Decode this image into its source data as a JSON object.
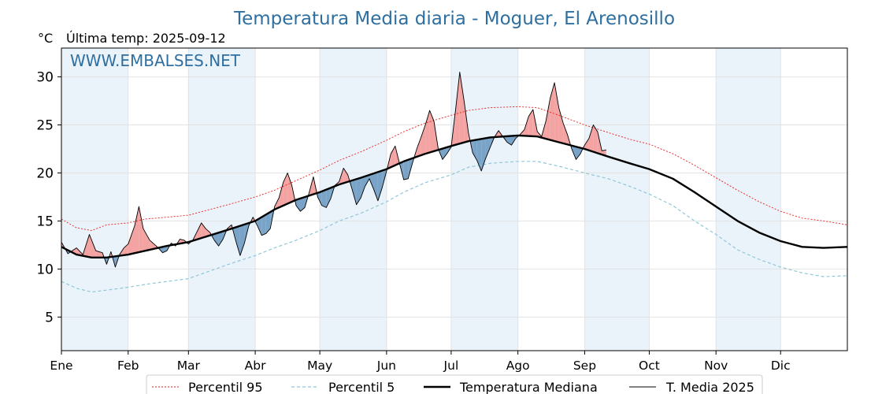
{
  "chart_data": {
    "type": "line",
    "title": "Temperatura Media diaria - Moguer, El Arenosillo",
    "ylabel": "°C",
    "subtitle": "Última temp: 2025-09-12",
    "watermark": "WWW.EMBALSES.NET",
    "x_unit": "day-of-year",
    "xlim": [
      1,
      366
    ],
    "ylim": [
      1.5,
      33
    ],
    "yticks": [
      5,
      10,
      15,
      20,
      25,
      30
    ],
    "month_labels": [
      "Ene",
      "Feb",
      "Mar",
      "Abr",
      "May",
      "Jun",
      "Jul",
      "Ago",
      "Sep",
      "Oct",
      "Nov",
      "Dic"
    ],
    "month_starts": [
      1,
      32,
      60,
      91,
      121,
      152,
      182,
      213,
      244,
      274,
      305,
      335
    ],
    "grid": true,
    "shaded_months": true,
    "legend_position": "bottom-center",
    "colors": {
      "p95": "#e8211c",
      "p5": "#8ec8d8",
      "median": "#000000",
      "current": "#000000",
      "above_fill": "#f4a3a3",
      "below_fill": "#7aa3c8",
      "band": "#eaf2fa",
      "title": "#2e6fa0"
    },
    "series": [
      {
        "key": "p95",
        "name": "Percentil 95",
        "style": "dotted",
        "points": [
          [
            1,
            15.2
          ],
          [
            8,
            14.3
          ],
          [
            15,
            14.0
          ],
          [
            22,
            14.6
          ],
          [
            32,
            14.8
          ],
          [
            40,
            15.2
          ],
          [
            50,
            15.4
          ],
          [
            60,
            15.6
          ],
          [
            70,
            16.2
          ],
          [
            80,
            16.8
          ],
          [
            91,
            17.5
          ],
          [
            100,
            18.2
          ],
          [
            110,
            19.2
          ],
          [
            121,
            20.3
          ],
          [
            130,
            21.3
          ],
          [
            140,
            22.2
          ],
          [
            152,
            23.4
          ],
          [
            160,
            24.3
          ],
          [
            170,
            25.2
          ],
          [
            182,
            26.0
          ],
          [
            190,
            26.5
          ],
          [
            200,
            26.8
          ],
          [
            213,
            26.9
          ],
          [
            222,
            26.8
          ],
          [
            232,
            26.0
          ],
          [
            244,
            25.0
          ],
          [
            255,
            24.2
          ],
          [
            265,
            23.5
          ],
          [
            274,
            23.0
          ],
          [
            285,
            22.0
          ],
          [
            295,
            20.8
          ],
          [
            305,
            19.5
          ],
          [
            315,
            18.2
          ],
          [
            325,
            17.0
          ],
          [
            335,
            16.0
          ],
          [
            345,
            15.3
          ],
          [
            355,
            15.0
          ],
          [
            366,
            14.6
          ]
        ]
      },
      {
        "key": "p5",
        "name": "Percentil 5",
        "style": "dashed",
        "points": [
          [
            1,
            8.7
          ],
          [
            8,
            8.0
          ],
          [
            15,
            7.6
          ],
          [
            22,
            7.8
          ],
          [
            32,
            8.1
          ],
          [
            40,
            8.4
          ],
          [
            50,
            8.7
          ],
          [
            60,
            9.0
          ],
          [
            70,
            9.8
          ],
          [
            80,
            10.6
          ],
          [
            91,
            11.4
          ],
          [
            100,
            12.2
          ],
          [
            110,
            13.0
          ],
          [
            121,
            14.0
          ],
          [
            130,
            15.0
          ],
          [
            140,
            15.8
          ],
          [
            152,
            17.0
          ],
          [
            160,
            18.0
          ],
          [
            170,
            19.0
          ],
          [
            182,
            19.8
          ],
          [
            190,
            20.6
          ],
          [
            200,
            21.0
          ],
          [
            213,
            21.2
          ],
          [
            222,
            21.2
          ],
          [
            232,
            20.7
          ],
          [
            244,
            20.0
          ],
          [
            255,
            19.4
          ],
          [
            265,
            18.6
          ],
          [
            274,
            17.8
          ],
          [
            285,
            16.6
          ],
          [
            295,
            15.0
          ],
          [
            305,
            13.6
          ],
          [
            315,
            12.0
          ],
          [
            325,
            11.0
          ],
          [
            335,
            10.2
          ],
          [
            345,
            9.6
          ],
          [
            355,
            9.2
          ],
          [
            366,
            9.3
          ]
        ]
      },
      {
        "key": "median",
        "name": "Temperatura Mediana",
        "style": "solid-thick",
        "points": [
          [
            1,
            12.3
          ],
          [
            8,
            11.5
          ],
          [
            15,
            11.2
          ],
          [
            22,
            11.2
          ],
          [
            32,
            11.5
          ],
          [
            40,
            11.9
          ],
          [
            50,
            12.4
          ],
          [
            60,
            12.8
          ],
          [
            70,
            13.5
          ],
          [
            80,
            14.2
          ],
          [
            91,
            15.0
          ],
          [
            100,
            16.2
          ],
          [
            110,
            17.2
          ],
          [
            121,
            18.0
          ],
          [
            130,
            18.8
          ],
          [
            140,
            19.5
          ],
          [
            152,
            20.4
          ],
          [
            160,
            21.2
          ],
          [
            170,
            22.0
          ],
          [
            182,
            22.8
          ],
          [
            190,
            23.3
          ],
          [
            200,
            23.7
          ],
          [
            213,
            23.9
          ],
          [
            222,
            23.8
          ],
          [
            232,
            23.2
          ],
          [
            244,
            22.5
          ],
          [
            255,
            21.7
          ],
          [
            265,
            21.0
          ],
          [
            274,
            20.4
          ],
          [
            285,
            19.4
          ],
          [
            295,
            18.0
          ],
          [
            305,
            16.5
          ],
          [
            315,
            15.0
          ],
          [
            325,
            13.8
          ],
          [
            335,
            12.9
          ],
          [
            345,
            12.3
          ],
          [
            355,
            12.2
          ],
          [
            366,
            12.3
          ]
        ]
      },
      {
        "key": "current",
        "name": "T. Media 2025",
        "style": "solid-thin",
        "points": [
          [
            1,
            12.8
          ],
          [
            4,
            11.6
          ],
          [
            8,
            12.2
          ],
          [
            11,
            11.5
          ],
          [
            14,
            13.6
          ],
          [
            17,
            11.9
          ],
          [
            20,
            11.7
          ],
          [
            22,
            10.5
          ],
          [
            24,
            11.8
          ],
          [
            26,
            10.2
          ],
          [
            28,
            11.5
          ],
          [
            30,
            12.2
          ],
          [
            32,
            12.6
          ],
          [
            35,
            14.5
          ],
          [
            37,
            16.5
          ],
          [
            39,
            14.2
          ],
          [
            42,
            13.0
          ],
          [
            44,
            12.6
          ],
          [
            46,
            12.2
          ],
          [
            48,
            11.7
          ],
          [
            50,
            11.9
          ],
          [
            52,
            12.7
          ],
          [
            54,
            12.4
          ],
          [
            56,
            13.1
          ],
          [
            58,
            13.0
          ],
          [
            60,
            12.6
          ],
          [
            62,
            13.0
          ],
          [
            64,
            13.9
          ],
          [
            66,
            14.8
          ],
          [
            68,
            14.2
          ],
          [
            70,
            13.8
          ],
          [
            72,
            13.0
          ],
          [
            74,
            12.4
          ],
          [
            76,
            13.1
          ],
          [
            78,
            14.2
          ],
          [
            80,
            14.6
          ],
          [
            82,
            12.9
          ],
          [
            84,
            11.4
          ],
          [
            86,
            12.7
          ],
          [
            88,
            14.5
          ],
          [
            90,
            15.4
          ],
          [
            92,
            14.5
          ],
          [
            94,
            13.5
          ],
          [
            96,
            13.7
          ],
          [
            98,
            14.2
          ],
          [
            100,
            16.5
          ],
          [
            102,
            17.4
          ],
          [
            104,
            19.0
          ],
          [
            106,
            20.0
          ],
          [
            108,
            18.7
          ],
          [
            110,
            16.6
          ],
          [
            112,
            16.0
          ],
          [
            114,
            16.4
          ],
          [
            116,
            17.9
          ],
          [
            118,
            19.6
          ],
          [
            120,
            17.5
          ],
          [
            122,
            16.6
          ],
          [
            124,
            16.4
          ],
          [
            126,
            17.3
          ],
          [
            128,
            18.7
          ],
          [
            130,
            19.1
          ],
          [
            132,
            20.5
          ],
          [
            134,
            19.8
          ],
          [
            136,
            18.3
          ],
          [
            138,
            16.7
          ],
          [
            140,
            17.4
          ],
          [
            142,
            18.6
          ],
          [
            144,
            19.4
          ],
          [
            146,
            18.3
          ],
          [
            148,
            17.1
          ],
          [
            150,
            18.5
          ],
          [
            152,
            20.2
          ],
          [
            154,
            22.0
          ],
          [
            156,
            22.8
          ],
          [
            158,
            21.0
          ],
          [
            160,
            19.3
          ],
          [
            162,
            19.4
          ],
          [
            164,
            21.0
          ],
          [
            166,
            22.5
          ],
          [
            168,
            23.7
          ],
          [
            170,
            25.0
          ],
          [
            172,
            26.5
          ],
          [
            174,
            25.4
          ],
          [
            176,
            22.5
          ],
          [
            178,
            21.4
          ],
          [
            180,
            22.0
          ],
          [
            182,
            22.7
          ],
          [
            184,
            26.5
          ],
          [
            186,
            30.5
          ],
          [
            188,
            27.5
          ],
          [
            190,
            24.2
          ],
          [
            192,
            22.1
          ],
          [
            194,
            21.3
          ],
          [
            196,
            20.2
          ],
          [
            198,
            21.5
          ],
          [
            200,
            22.6
          ],
          [
            202,
            23.7
          ],
          [
            204,
            24.4
          ],
          [
            206,
            23.8
          ],
          [
            208,
            23.2
          ],
          [
            210,
            22.9
          ],
          [
            212,
            23.6
          ],
          [
            214,
            24.0
          ],
          [
            216,
            24.5
          ],
          [
            218,
            25.9
          ],
          [
            220,
            26.6
          ],
          [
            222,
            24.3
          ],
          [
            224,
            23.8
          ],
          [
            226,
            25.4
          ],
          [
            228,
            27.8
          ],
          [
            230,
            29.4
          ],
          [
            232,
            26.8
          ],
          [
            234,
            25.2
          ],
          [
            236,
            24.0
          ],
          [
            238,
            22.5
          ],
          [
            240,
            21.4
          ],
          [
            242,
            22.0
          ],
          [
            244,
            22.9
          ],
          [
            246,
            23.6
          ],
          [
            248,
            25.0
          ],
          [
            250,
            24.3
          ],
          [
            252,
            22.3
          ],
          [
            254,
            22.4
          ]
        ]
      }
    ]
  }
}
